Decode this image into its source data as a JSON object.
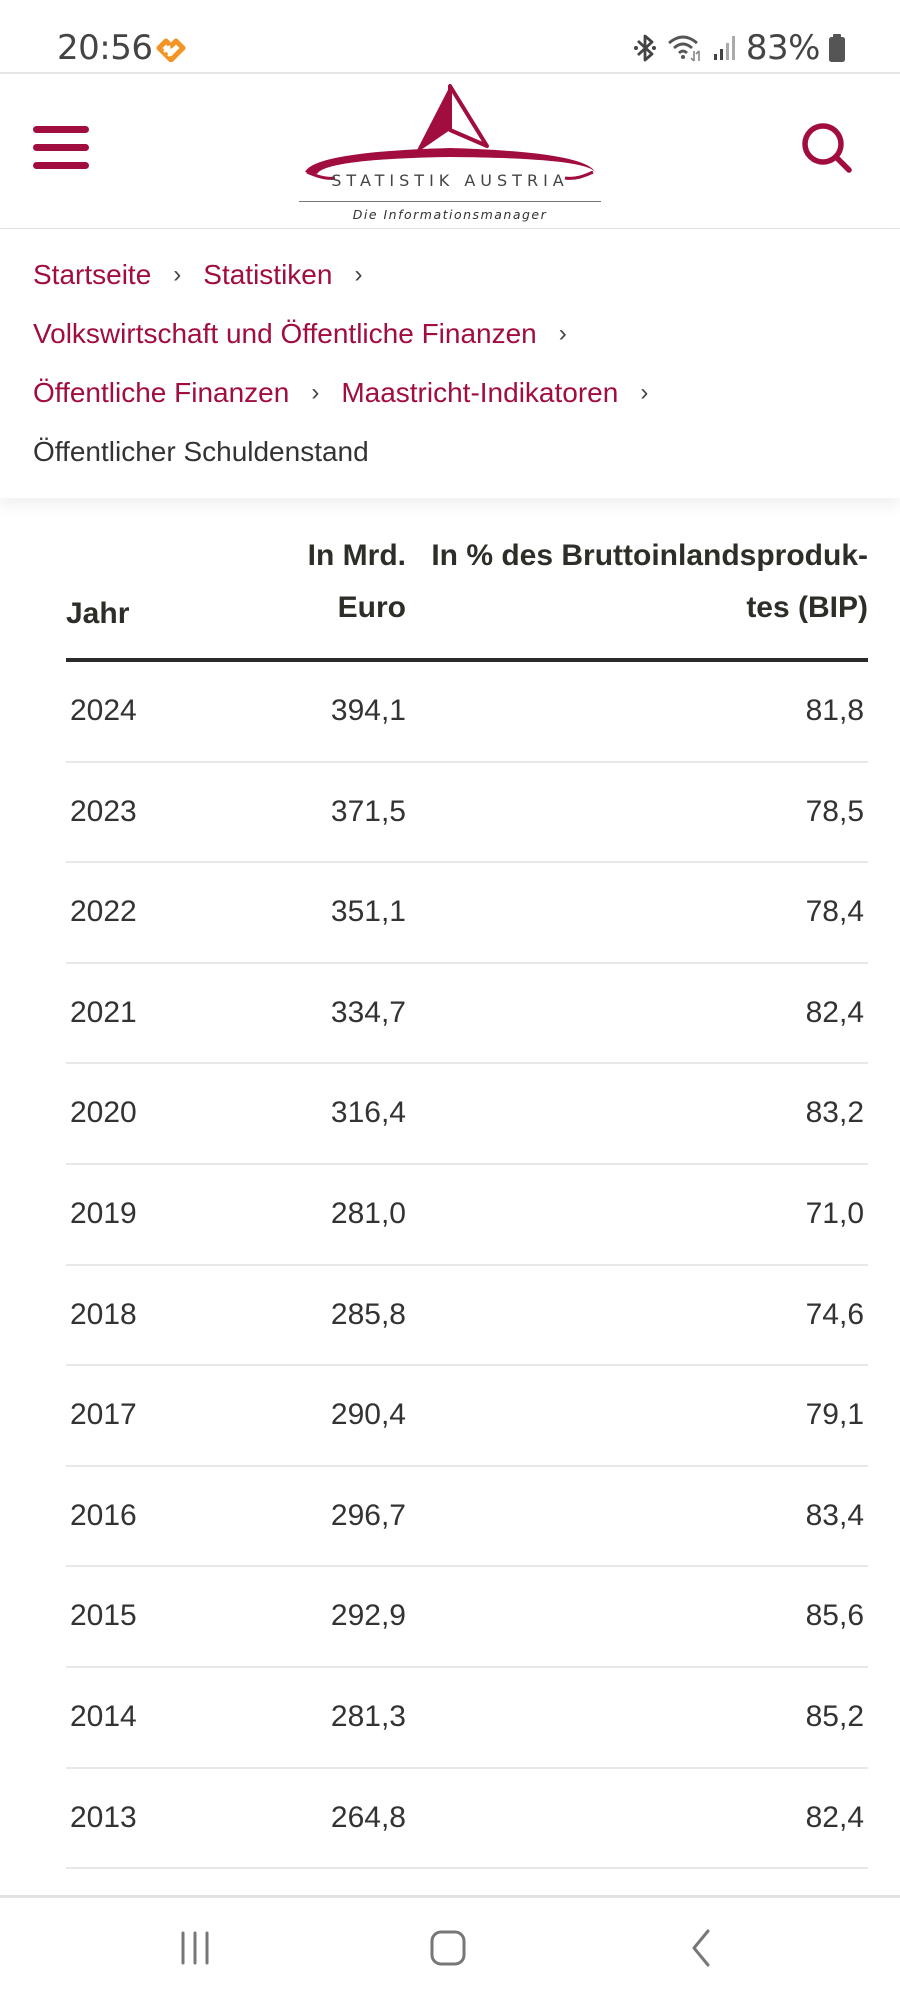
{
  "status_bar": {
    "time": "20:56",
    "app_icon": "health-heart-icon",
    "icons": [
      "bluetooth-icon",
      "wifi-icon",
      "signal-icon",
      "battery-icon"
    ],
    "battery_percent": "83%"
  },
  "header": {
    "menu_icon": "hamburger-menu-icon",
    "search_icon": "search-icon",
    "logo": {
      "title": "STATISTIK AUSTRIA",
      "subtitle": "Die Informationsmanager"
    },
    "accent_color": "#a00d3e"
  },
  "breadcrumb": {
    "items": [
      {
        "label": "Startseite"
      },
      {
        "label": "Statistiken"
      },
      {
        "label": "Volkswirtschaft und Öffentliche Finanzen"
      },
      {
        "label": "Öffentliche Finanzen"
      },
      {
        "label": "Maastricht-Indikatoren"
      }
    ],
    "separator": "›",
    "current": "Öffentlicher Schuldenstand"
  },
  "table": {
    "headers": {
      "year": "Jahr",
      "mrd_line1": "In Mrd.",
      "mrd_line2": "Euro",
      "pct_line1": "In % des Bruttoinlandsproduk-",
      "pct_line2": "tes (BIP)"
    },
    "rows": [
      {
        "year": "2024",
        "mrd": "394,1",
        "pct": "81,8"
      },
      {
        "year": "2023",
        "mrd": "371,5",
        "pct": "78,5"
      },
      {
        "year": "2022",
        "mrd": "351,1",
        "pct": "78,4"
      },
      {
        "year": "2021",
        "mrd": "334,7",
        "pct": "82,4"
      },
      {
        "year": "2020",
        "mrd": "316,4",
        "pct": "83,2"
      },
      {
        "year": "2019",
        "mrd": "281,0",
        "pct": "71,0"
      },
      {
        "year": "2018",
        "mrd": "285,8",
        "pct": "74,6"
      },
      {
        "year": "2017",
        "mrd": "290,4",
        "pct": "79,1"
      },
      {
        "year": "2016",
        "mrd": "296,7",
        "pct": "83,4"
      },
      {
        "year": "2015",
        "mrd": "292,9",
        "pct": "85,6"
      },
      {
        "year": "2014",
        "mrd": "281,3",
        "pct": "85,2"
      },
      {
        "year": "2013",
        "mrd": "264,8",
        "pct": "82,4"
      }
    ]
  },
  "nav_bar": {
    "buttons": [
      "recent-apps-icon",
      "home-icon",
      "back-icon"
    ]
  }
}
